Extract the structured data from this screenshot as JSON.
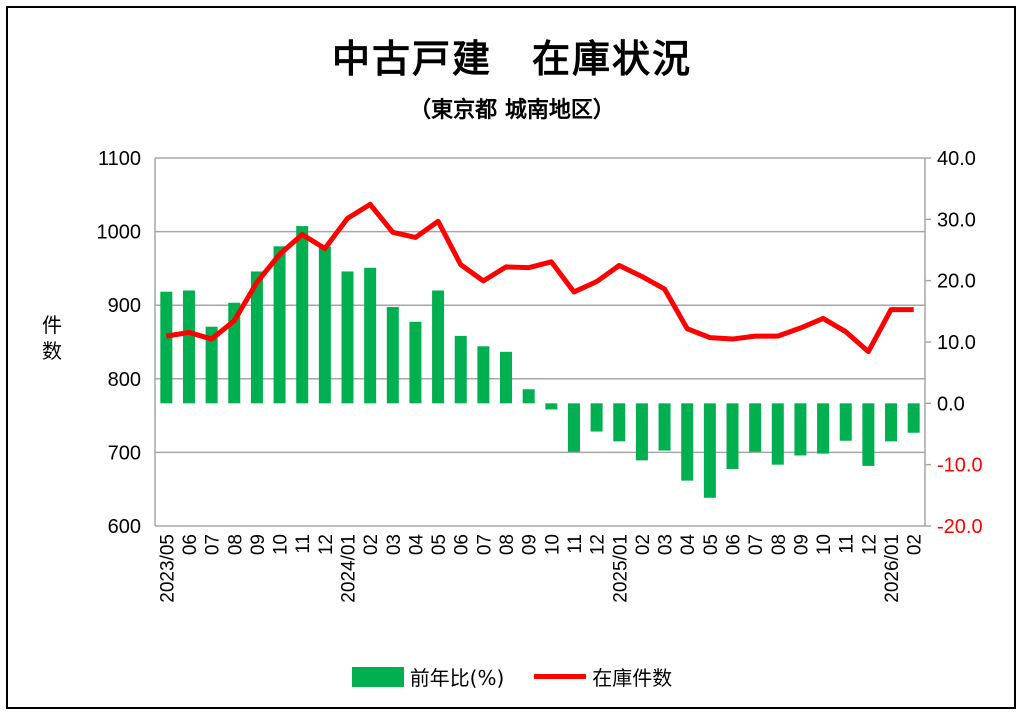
{
  "chart_data": {
    "type": "bar+line",
    "title": "中古戸建　在庫状況",
    "subtitle": "（東京都 城南地区）",
    "ylabel_left": "件数",
    "categories": [
      "2023/05",
      "06",
      "07",
      "08",
      "09",
      "10",
      "11",
      "12",
      "2024/01",
      "02",
      "03",
      "04",
      "05",
      "06",
      "07",
      "08",
      "09",
      "10",
      "11",
      "12",
      "2025/01",
      "02",
      "03",
      "04",
      "05",
      "06",
      "07",
      "08",
      "09",
      "10",
      "11",
      "12",
      "2026/01",
      "02"
    ],
    "series": [
      {
        "name": "前年比(%)",
        "type": "bar",
        "axis": "right",
        "color": "#00b050",
        "values": [
          18.2,
          18.4,
          12.5,
          16.4,
          21.5,
          25.6,
          28.9,
          25.6,
          21.5,
          22.1,
          15.7,
          13.3,
          18.4,
          11.0,
          9.3,
          8.4,
          2.3,
          -1.0,
          -7.9,
          -4.6,
          -6.2,
          -9.3,
          -7.7,
          -12.6,
          -15.4,
          -10.7,
          -7.9,
          -10.0,
          -8.5,
          -8.2,
          -6.1,
          -10.2,
          -6.2,
          -4.8
        ]
      },
      {
        "name": "在庫件数",
        "type": "line",
        "axis": "left",
        "color": "#ff0000",
        "values": [
          858,
          863,
          854,
          879,
          931,
          969,
          996,
          977,
          1018,
          1037,
          999,
          992,
          1014,
          955,
          933,
          952,
          951,
          959,
          918,
          932,
          954,
          939,
          922,
          868,
          856,
          854,
          858,
          858,
          869,
          882,
          864,
          837,
          894,
          894
        ]
      }
    ],
    "left_axis": {
      "range": [
        600,
        1100
      ],
      "ticks": [
        "600",
        "700",
        "800",
        "900",
        "1000",
        "1100"
      ]
    },
    "right_axis": {
      "range": [
        -20,
        40
      ],
      "ticks": [
        "-20.0",
        "-10.0",
        "0.0",
        "10.0",
        "20.0",
        "30.0",
        "40.0"
      ],
      "negative_color": "#ff0000"
    },
    "grid": true,
    "legend_position": "bottom"
  }
}
